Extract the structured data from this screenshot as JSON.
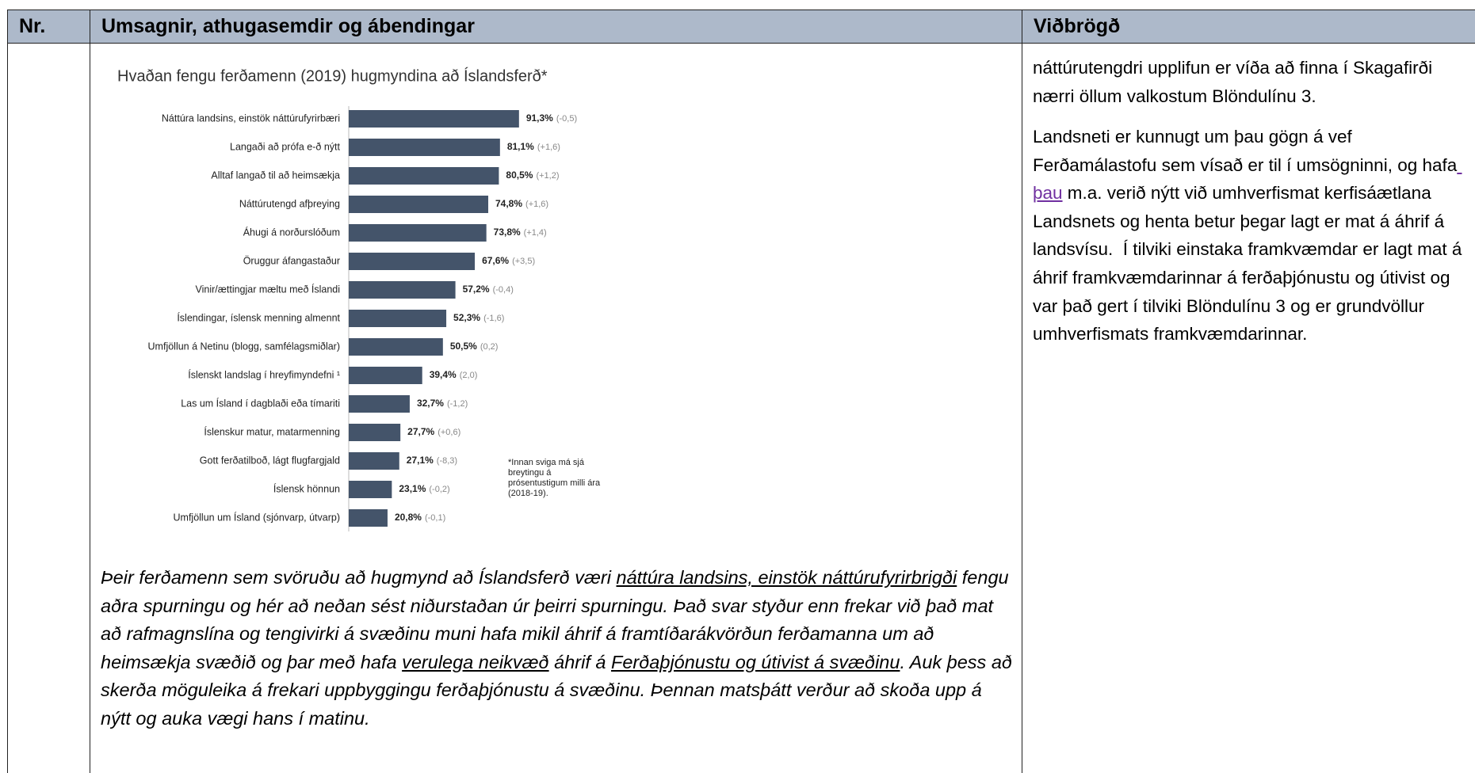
{
  "table": {
    "headers": [
      "Nr.",
      "Umsagnir, athugasemdir og ábendingar",
      "Viðbrögð"
    ]
  },
  "chart": {
    "type": "bar",
    "title": "Hvaðan fengu ferðamenn (2019) hugmyndina að Íslandsferð*",
    "categories": [
      "Náttúra landsins, einstök náttúrufyrirbæri",
      "Langaði að prófa e-ð nýtt",
      "Alltaf langað til að heimsækja",
      "Náttúrutengd afþreying",
      "Áhugi á norðurslóðum",
      "Öruggur áfangastaður",
      "Vinir/ættingjar mæltu með Íslandi",
      "Íslendingar, íslensk menning almennt",
      "Umfjöllun á Netinu (blogg, samfélagsmiðlar)",
      "Íslenskt landslag í hreyfimyndefni ¹",
      "Las um Ísland í dagblaði eða  tímariti",
      "Íslenskur matur, matarmenning",
      "Gott ferðatilboð, lágt flugfargjald",
      "Íslensk hönnun",
      "Umfjöllun um Ísland (sjónvarp, útvarp)"
    ],
    "values": [
      91.3,
      81.1,
      80.5,
      74.8,
      73.8,
      67.6,
      57.2,
      52.3,
      50.5,
      39.4,
      32.7,
      27.7,
      27.1,
      23.1,
      20.8
    ],
    "value_labels": [
      "91,3%",
      "81,1%",
      "80,5%",
      "74,8%",
      "73,8%",
      "67,6%",
      "57,2%",
      "52,3%",
      "50,5%",
      "39,4%",
      "32,7%",
      "27,7%",
      "27,1%",
      "23,1%",
      "20,8%"
    ],
    "change_labels": [
      "(-0,5)",
      "(+1,6)",
      "(+1,2)",
      "(+1,6)",
      "(+1,4)",
      "(+3,5)",
      "(-0,4)",
      "(-1,6)",
      "(0,2)",
      "(2,0)",
      "(-1,2)",
      "(+0,6)",
      "(-8,3)",
      "(-0,2)",
      "(-0,1)"
    ],
    "color": "#44546a",
    "note": "*Innan sviga má sjá breytingu á prósentustigum milli ára (2018-19)."
  },
  "comment": [
    "Þeir ferðamenn sem svöruðu að hugmynd að Íslandsferð væri ",
    "náttúra landsins, einstök náttúrufyrirbrigði",
    " fengu aðra spurningu og hér að neðan sést niðurstaðan úr þeirri spurningu. Það svar styður enn frekar við það mat að rafmagnslína og tengivirki á svæðinu muni hafa mikil áhrif á framtíðarákvörðun ferðamanna um að heimsækja svæðið og þar með hafa ",
    "verulega neikvæð",
    " áhrif á ",
    "Ferðaþjónustu og útivist á svæðinu",
    ". Auk þess að skerða möguleika á frekari uppbyggingu ferðaþjónustu á svæðinu. Þennan matsþátt verður að skoða upp á nýtt og auka vægi hans í matinu."
  ],
  "response": {
    "p1": "náttúrutengdri upplifun er víða að finna í Skagafirði nærri öllum valkostum Blöndulínu 3.",
    "p2": [
      "Landsneti er kunnugt um þau gögn á vef Ferðamálastofu sem vísað er til í umsögninni, og hafa",
      " þau",
      " m.a. verið nýtt við umhverfismat kerfisáætlana Landsnets og henta betur þegar lagt er mat á áhrif á landsvísu.  Í tilviki einstaka framkvæmdar er lagt mat á áhrif framkvæmdarinnar á ferðaþjónustu og útivist og var það gert í tilviki Blöndulínu 3 og er grundvöllur umhverfismats framkvæmdarinnar."
    ]
  }
}
